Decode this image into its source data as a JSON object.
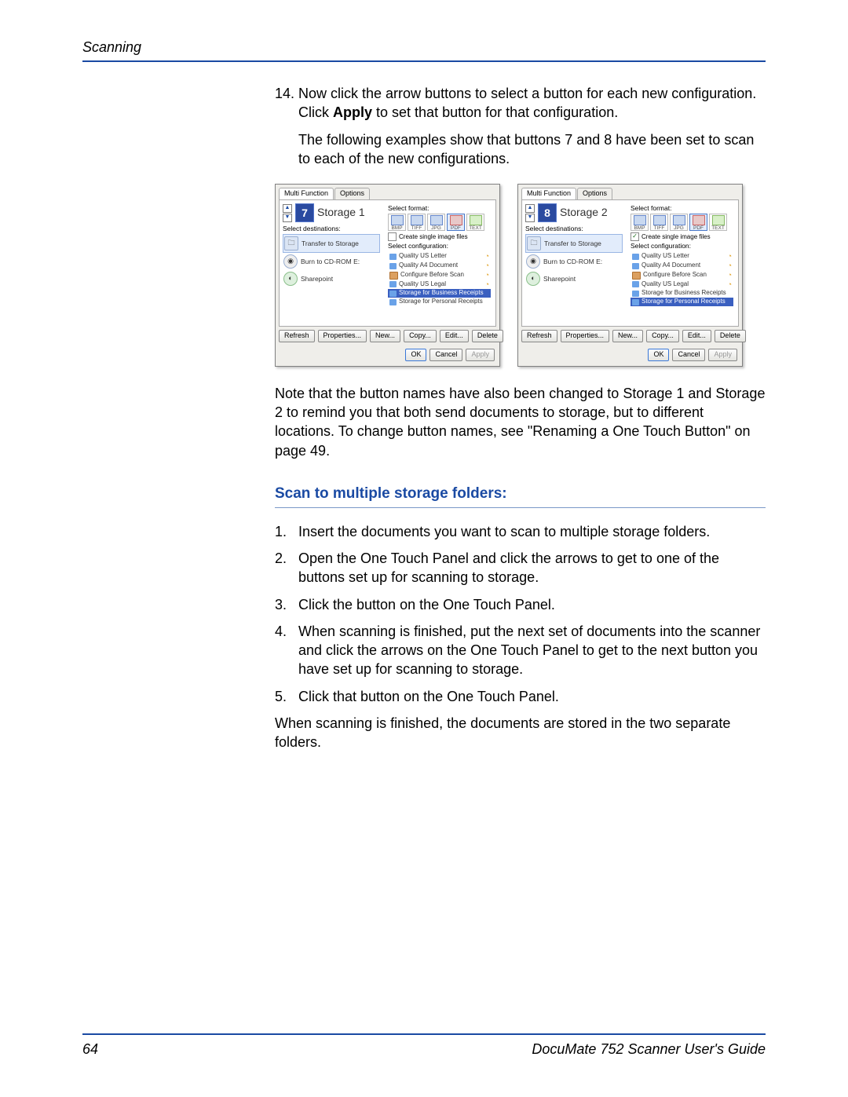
{
  "header": {
    "section": "Scanning"
  },
  "step14": {
    "number": "14.",
    "p1a": "Now click the arrow buttons to select a button for each new configuration. Click ",
    "p1b": "Apply",
    "p1c": " to set that button for that configuration.",
    "p2": "The following examples show that buttons 7 and 8 have been set to scan to each of the new configurations."
  },
  "dialogs": {
    "tabs": {
      "multi": "Multi Function",
      "options": "Options"
    },
    "sel_dest": "Select destinations:",
    "sel_fmt": "Select format:",
    "sel_cfg": "Select configuration:",
    "dest": {
      "transfer": "Transfer to Storage",
      "burn": "Burn to CD-ROM  E:",
      "sharepoint": "Sharepoint"
    },
    "formats": {
      "bmp": "BMP",
      "tiff": "TIFF",
      "jpg": "JPG",
      "pdf": "PDF",
      "text": "TEXT"
    },
    "create_single": "Create single image files",
    "configs": {
      "letter": "Quality US Letter",
      "a4": "Quality A4 Document",
      "before": "Configure Before Scan",
      "legal": "Quality US Legal",
      "business": "Storage for Business Receipts",
      "personal": "Storage for Personal Receipts"
    },
    "buttons": {
      "refresh": "Refresh",
      "properties": "Properties...",
      "new": "New...",
      "copy": "Copy...",
      "edit": "Edit...",
      "delete": "Delete",
      "ok": "OK",
      "cancel": "Cancel",
      "apply": "Apply"
    },
    "left": {
      "num": "7",
      "name": "Storage 1"
    },
    "right": {
      "num": "8",
      "name": "Storage 2"
    }
  },
  "note": "Note that the button names have also been changed to Storage 1 and Storage 2 to remind you that both send documents to storage, but to different locations. To change button names, see \"Renaming a One Touch Button\" on page 49.",
  "subheading": "Scan to multiple storage folders:",
  "steps": [
    {
      "n": "1.",
      "t": "Insert the documents you want to scan to multiple storage folders."
    },
    {
      "n": "2.",
      "t": "Open the One Touch Panel and click the arrows to get to one of the buttons set up for scanning to storage."
    },
    {
      "n": "3.",
      "t": "Click the button on the One Touch Panel."
    },
    {
      "n": "4.",
      "t": "When scanning is finished, put the next set of documents into the scanner and click the arrows on the One Touch Panel to get to the next button you have set up for scanning to storage."
    },
    {
      "n": "5.",
      "t": "Click that button on the One Touch Panel."
    }
  ],
  "closing": "When scanning is finished, the documents are stored in the two separate folders.",
  "footer": {
    "page": "64",
    "title": "DocuMate 752 Scanner User's Guide"
  }
}
